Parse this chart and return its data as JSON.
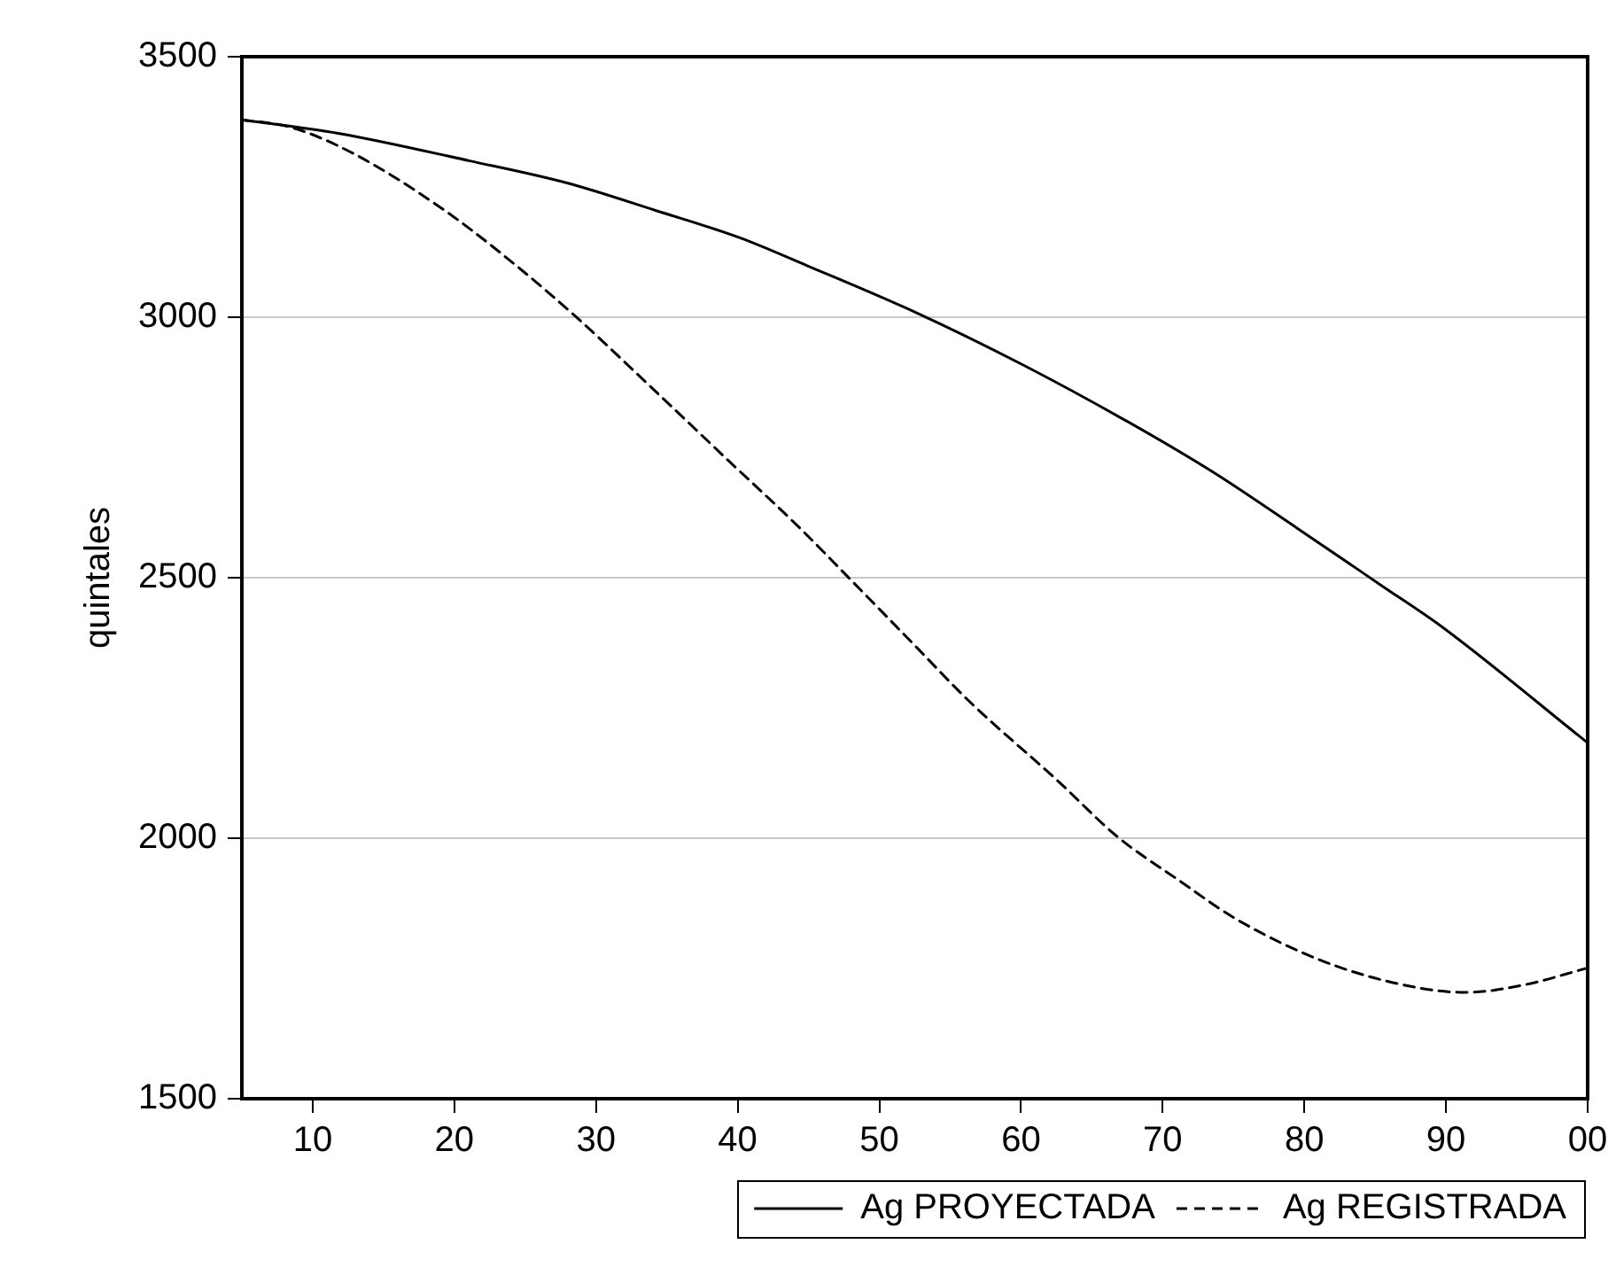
{
  "chart_data": {
    "type": "line",
    "ylabel": "quintales",
    "xlim": [
      1905,
      2000
    ],
    "xticks": [
      {
        "value": 1910,
        "label": "10"
      },
      {
        "value": 1920,
        "label": "20"
      },
      {
        "value": 1930,
        "label": "30"
      },
      {
        "value": 1940,
        "label": "40"
      },
      {
        "value": 1950,
        "label": "50"
      },
      {
        "value": 1960,
        "label": "60"
      },
      {
        "value": 1970,
        "label": "70"
      },
      {
        "value": 1980,
        "label": "80"
      },
      {
        "value": 1990,
        "label": "90"
      },
      {
        "value": 2000,
        "label": "00"
      }
    ],
    "ylim": [
      1500,
      3500
    ],
    "yticks": [
      1500,
      2000,
      2500,
      3000,
      3500
    ],
    "grid": "y",
    "legend": "bottom right",
    "marker": "none",
    "series": [
      {
        "name": "Ag PROYECTADA",
        "color": "#000000",
        "line_style": "solid",
        "x": [
          1905,
          1911.8,
          1921.1,
          1927.9,
          1934.2,
          1940.2,
          1944.9,
          1952.5,
          1960.1,
          1967.3,
          1973.6,
          1979.5,
          1985.5,
          1989.7,
          2000
        ],
        "values": [
          3379,
          3353,
          3300,
          3258,
          3205,
          3152,
          3099,
          3010,
          2909,
          2803,
          2702,
          2595,
          2484,
          2406,
          2183
        ]
      },
      {
        "name": "Ag REGISTRADA",
        "color": "#000000",
        "line_style": "dashed",
        "x": [
          1905,
          1908.4,
          1912.6,
          1919,
          1923.6,
          1928.7,
          1933.8,
          1939.3,
          1944.4,
          1947.8,
          1952.5,
          1956.3,
          1962.6,
          1966.8,
          1971.1,
          1975.3,
          1981.7,
          1988,
          1991.4,
          1995.6,
          2000
        ],
        "values": [
          3379,
          3365,
          3318,
          3211,
          3116,
          2998,
          2868,
          2726,
          2595,
          2501,
          2370,
          2264,
          2110,
          2003,
          1920,
          1843,
          1760,
          1713,
          1704,
          1719,
          1751
        ]
      }
    ]
  }
}
